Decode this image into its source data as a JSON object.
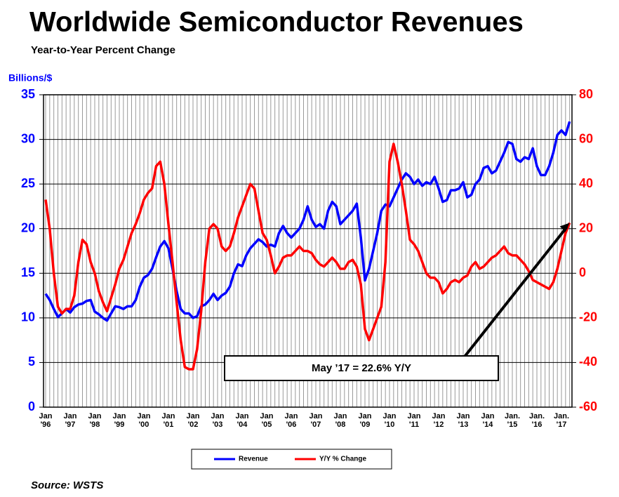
{
  "chart_data": {
    "type": "line",
    "title": "Worldwide Semiconductor Revenues",
    "subtitle": "Year-to-Year Percent Change",
    "y_label": "Billions/$",
    "source": "Source: WSTS",
    "annotation": "May ’17 = 22.6% Y/Y",
    "categories": [
      "Jan '96",
      null,
      null,
      null,
      null,
      null,
      "Jan '97",
      null,
      null,
      null,
      null,
      null,
      "Jan '98",
      null,
      null,
      null,
      null,
      null,
      "Jan '99",
      null,
      null,
      null,
      null,
      null,
      "Jan '00",
      null,
      null,
      null,
      null,
      null,
      "Jan '01",
      null,
      null,
      null,
      null,
      null,
      "Jan '02",
      null,
      null,
      null,
      null,
      null,
      "Jan '03",
      null,
      null,
      null,
      null,
      null,
      "Jan '04",
      null,
      null,
      null,
      null,
      null,
      "Jan '05",
      null,
      null,
      null,
      null,
      null,
      "Jan '06",
      null,
      null,
      null,
      null,
      null,
      "Jan '07",
      null,
      null,
      null,
      null,
      null,
      "Jan '08",
      null,
      null,
      null,
      null,
      null,
      "Jan '09",
      null,
      null,
      null,
      null,
      null,
      "Jan '10",
      null,
      null,
      null,
      null,
      null,
      "Jan '11",
      null,
      null,
      null,
      null,
      null,
      "Jan '12",
      null,
      null,
      null,
      null,
      null,
      "Jan '13",
      null,
      null,
      null,
      null,
      null,
      "Jan '14",
      null,
      null,
      null,
      null,
      null,
      "Jan. '15",
      null,
      null,
      null,
      null,
      null,
      "Jan. '16",
      null,
      null,
      null,
      null,
      null,
      "Jan. '17",
      null,
      null
    ],
    "series": [
      {
        "name": "Revenue",
        "color": "#0000ff",
        "axis": "y",
        "values": [
          12.7,
          12.0,
          11.0,
          10.1,
          10.5,
          11.0,
          10.6,
          11.2,
          11.5,
          11.6,
          11.9,
          12.0,
          10.7,
          10.4,
          10.0,
          9.7,
          10.5,
          11.3,
          11.2,
          11.0,
          11.3,
          11.3,
          12.0,
          13.5,
          14.5,
          14.8,
          15.5,
          16.8,
          18.0,
          18.6,
          17.8,
          15.5,
          13.0,
          11.0,
          10.5,
          10.5,
          10.0,
          10.2,
          11.3,
          11.5,
          12.0,
          12.7,
          12.0,
          12.5,
          12.8,
          13.5,
          15.0,
          16.0,
          15.8,
          17.0,
          17.8,
          18.3,
          18.8,
          18.5,
          18.0,
          18.2,
          18.0,
          19.5,
          20.3,
          19.5,
          19.0,
          19.5,
          20.0,
          21.0,
          22.5,
          21.0,
          20.2,
          20.5,
          20.0,
          22.0,
          23.0,
          22.5,
          20.5,
          21.0,
          21.5,
          22.0,
          22.8,
          19.0,
          14.2,
          15.5,
          17.5,
          19.5,
          22.0,
          22.7,
          22.5,
          23.5,
          24.5,
          25.5,
          26.2,
          25.8,
          25.0,
          25.5,
          24.8,
          25.2,
          25.0,
          25.8,
          24.5,
          23.0,
          23.2,
          24.3,
          24.3,
          24.5,
          25.2,
          23.5,
          23.8,
          25.0,
          25.5,
          26.8,
          27.0,
          26.2,
          26.5,
          27.5,
          28.5,
          29.7,
          29.5,
          27.8,
          27.5,
          28.0,
          27.8,
          29.0,
          27.0,
          26.0,
          26.0,
          27.0,
          28.5,
          30.5,
          31.0,
          30.5,
          32.0
        ]
      },
      {
        "name": "Y/Y % Change",
        "color": "#ff0000",
        "axis": "y2",
        "values": [
          33,
          20,
          0,
          -15,
          -18,
          -16,
          -16,
          -10,
          5,
          15,
          13,
          5,
          0,
          -8,
          -13,
          -17,
          -11,
          -5,
          2,
          6,
          12,
          18,
          22,
          27,
          33,
          36,
          38,
          48,
          50,
          40,
          22,
          5,
          -13,
          -30,
          -42,
          -43,
          -43,
          -34,
          -17,
          5,
          20,
          22,
          20,
          12,
          10,
          12,
          18,
          25,
          30,
          35,
          40,
          38,
          28,
          18,
          15,
          8,
          0,
          3,
          7,
          8,
          8,
          10,
          12,
          10,
          10,
          9,
          6,
          4,
          3,
          5,
          7,
          5,
          2,
          2,
          5,
          6,
          3,
          -5,
          -25,
          -30,
          -25,
          -20,
          -15,
          5,
          50,
          58,
          50,
          40,
          28,
          15,
          13,
          10,
          5,
          0,
          -2,
          -2,
          -4,
          -9,
          -7,
          -4,
          -3,
          -4,
          -2,
          -1,
          3,
          5,
          2,
          3,
          5,
          7,
          8,
          10,
          12,
          9,
          8,
          8,
          6,
          4,
          1,
          -3,
          -4,
          -5,
          -6,
          -7,
          -4,
          2,
          10,
          18,
          22.6
        ]
      }
    ],
    "ylim": [
      0,
      35
    ],
    "yticks": [
      0,
      5,
      10,
      15,
      20,
      25,
      30,
      35
    ],
    "y2lim": [
      -60,
      80
    ],
    "y2ticks": [
      -60,
      -40,
      -20,
      0,
      20,
      40,
      60,
      80
    ],
    "grid": true
  }
}
